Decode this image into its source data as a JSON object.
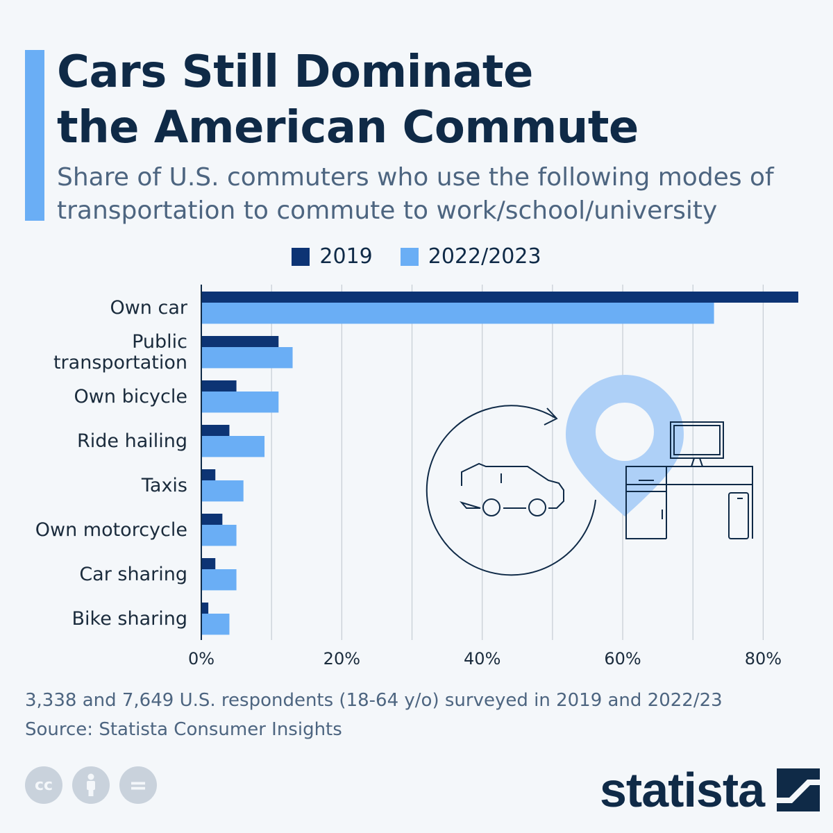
{
  "header": {
    "title_lines": [
      "Cars Still Dominate",
      "the American Commute"
    ],
    "subtitle_lines": [
      "Share of U.S. commuters who use the following modes of",
      "transportation to commute to work/school/university"
    ]
  },
  "colors": {
    "series_2019": "#0d3474",
    "series_2022": "#6aaef5",
    "accent": "#6aaef5",
    "grid": "#c5ccd3"
  },
  "chart_data": {
    "type": "bar",
    "orientation": "horizontal",
    "categories": [
      "Own car",
      "Public transportation",
      "Own bicycle",
      "Ride hailing",
      "Taxis",
      "Own motorcycle",
      "Car sharing",
      "Bike sharing"
    ],
    "category_lines": [
      [
        "Own car"
      ],
      [
        "Public",
        "transportation"
      ],
      [
        "Own bicycle"
      ],
      [
        "Ride hailing"
      ],
      [
        "Taxis"
      ],
      [
        "Own motorcycle"
      ],
      [
        "Car sharing"
      ],
      [
        "Bike sharing"
      ]
    ],
    "series": [
      {
        "name": "2019",
        "values": [
          85,
          11,
          5,
          4,
          2,
          3,
          2,
          1
        ]
      },
      {
        "name": "2022/2023",
        "values": [
          73,
          13,
          11,
          9,
          6,
          5,
          5,
          4
        ]
      }
    ],
    "xlim": [
      0,
      85
    ],
    "xticks": [
      0,
      20,
      40,
      60,
      80
    ],
    "xtick_labels": [
      "0%",
      "20%",
      "40%",
      "60%",
      "80%"
    ],
    "grid_step": 10,
    "grid": true,
    "legend_position": "top-center"
  },
  "footer": {
    "note_lines": [
      "3,338 and 7,649 U.S. respondents (18-64 y/o) surveyed in 2019 and 2022/23",
      "Source: Statista Consumer Insights"
    ],
    "license_icons": [
      "creative-commons-icon",
      "attribution-icon",
      "no-derivatives-icon"
    ],
    "cc_glyphs": [
      "cc",
      "",
      "="
    ],
    "brand": "statista"
  }
}
